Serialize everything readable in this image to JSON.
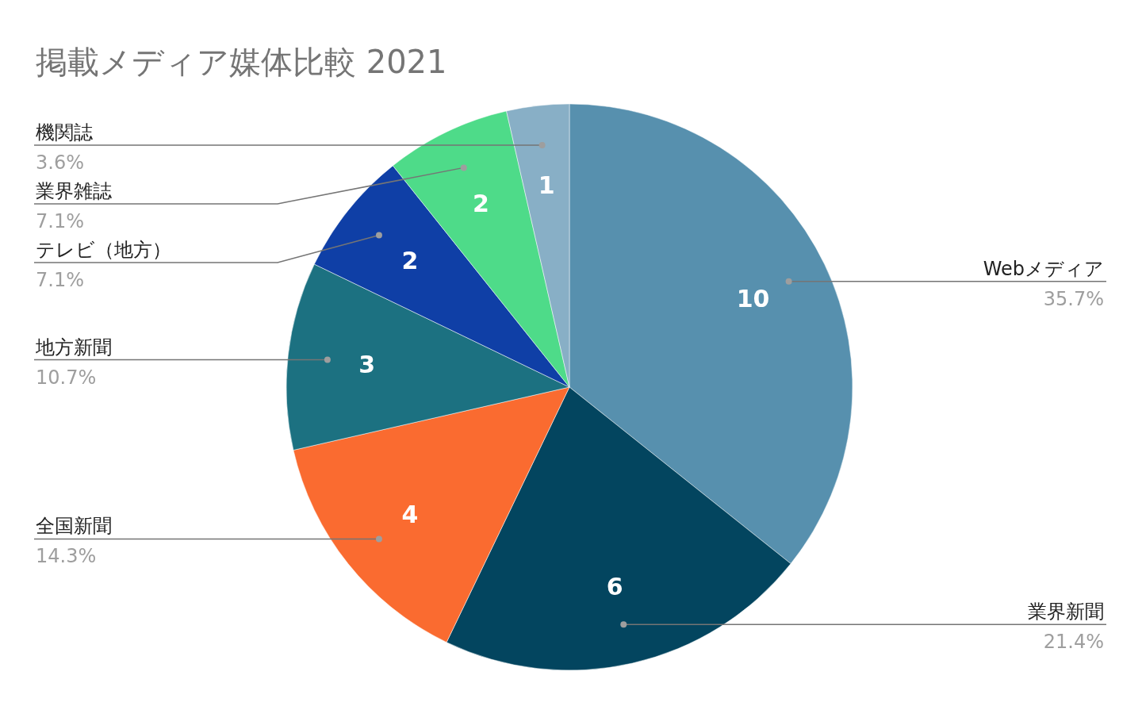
{
  "chart_data": {
    "type": "pie",
    "title": "掲載メディア媒体比較 2021",
    "categories": [
      "Webメディア",
      "業界新聞",
      "全国新聞",
      "地方新聞",
      "テレビ（地方）",
      "業界雑誌",
      "機関誌"
    ],
    "values": [
      10,
      6,
      4,
      3,
      2,
      2,
      1
    ],
    "colors": [
      "#5790ae",
      "#03455f",
      "#fa6b30",
      "#1c7181",
      "#0f3fa6",
      "#4edb89",
      "#88afc6"
    ],
    "data_labels": true,
    "annotations": [
      "35.7%",
      "21.4%",
      "14.3%",
      "10.7%",
      "7.1%",
      "7.1%",
      "3.6%"
    ]
  }
}
